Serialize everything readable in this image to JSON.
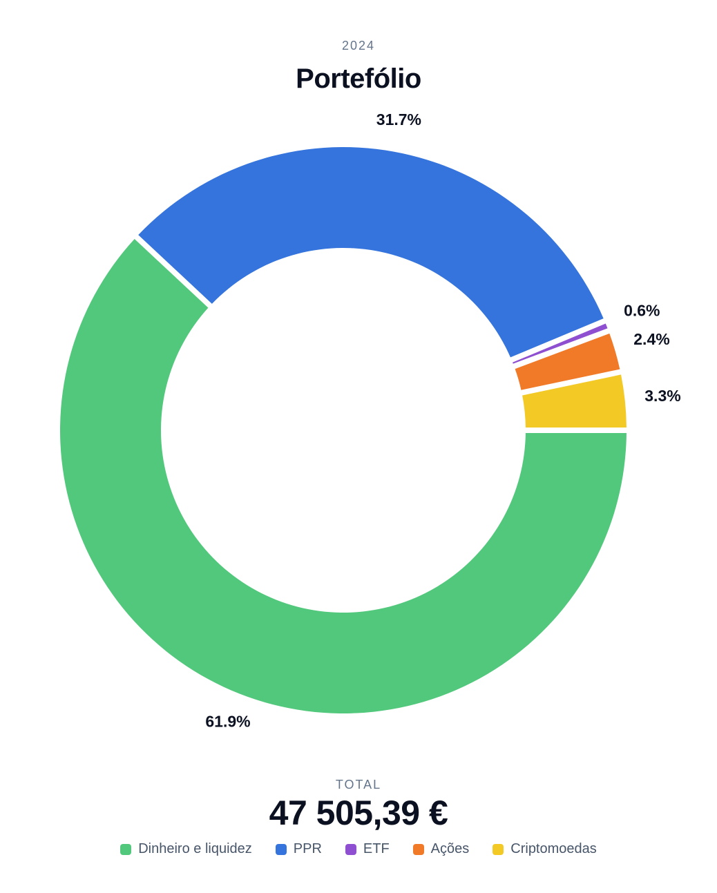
{
  "header": {
    "year": "2024",
    "title": "Portefólio"
  },
  "total": {
    "label": "TOTAL",
    "value": "47 505,39 €"
  },
  "chart_data": {
    "type": "pie",
    "style": "donut",
    "title": "Portefólio",
    "categories": [
      "Dinheiro e liquidez",
      "PPR",
      "ETF",
      "Ações",
      "Criptomoedas"
    ],
    "values": [
      61.9,
      31.7,
      0.6,
      2.4,
      3.3
    ],
    "labels": [
      "61.9%",
      "31.7%",
      "0.6%",
      "2.4%",
      "3.3%"
    ],
    "colors": [
      "#52c87c",
      "#3474dc",
      "#8e4fd0",
      "#f17a28",
      "#f3c926"
    ],
    "legend_position": "bottom"
  },
  "legend": [
    {
      "label": "Dinheiro e liquidez",
      "color": "#52c87c"
    },
    {
      "label": "PPR",
      "color": "#3474dc"
    },
    {
      "label": "ETF",
      "color": "#8e4fd0"
    },
    {
      "label": "Ações",
      "color": "#f17a28"
    },
    {
      "label": "Criptomoedas",
      "color": "#f3c926"
    }
  ]
}
